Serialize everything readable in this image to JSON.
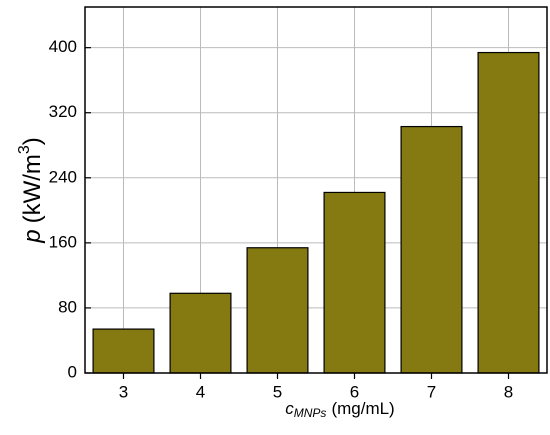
{
  "chart_data": {
    "type": "bar",
    "categories": [
      "3",
      "4",
      "5",
      "6",
      "7",
      "8"
    ],
    "values": [
      54,
      98,
      154,
      222,
      303,
      394
    ],
    "color": "#857a12",
    "ylim": [
      0,
      450
    ],
    "yticks": [
      0,
      80,
      160,
      240,
      320,
      400
    ],
    "grid": true,
    "ylabel": {
      "symbol": "p",
      "unit": "(kW/m",
      "exponent": "3",
      "close": ")"
    },
    "xlabel": {
      "symbol": "c",
      "subscript": "MNPs",
      "unit": "(mg/mL)"
    }
  }
}
